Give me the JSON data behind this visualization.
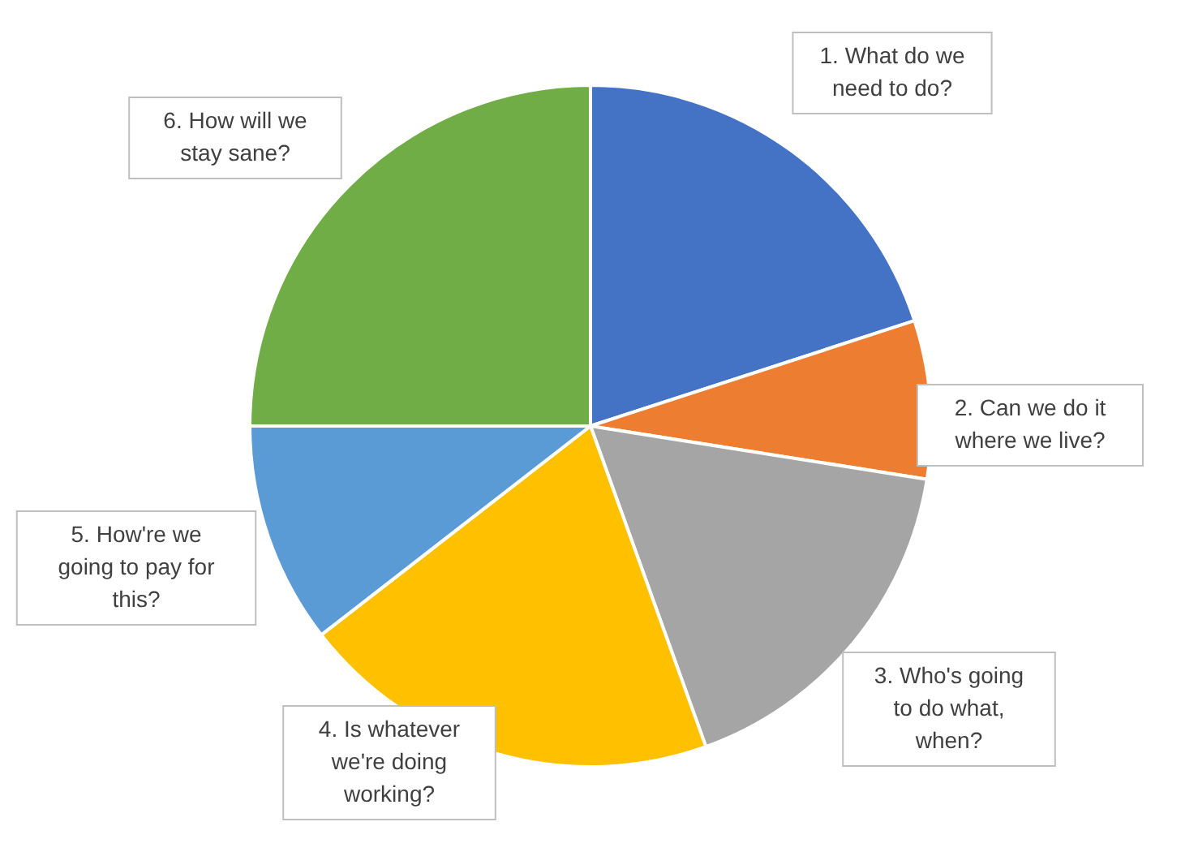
{
  "chart_data": {
    "type": "pie",
    "categories": [
      "1. What do we need to do?",
      "2. Can we do it where we live?",
      "3. Who's going to do what, when?",
      "4. Is whatever we're doing working?",
      "5. How're we going to pay for this?",
      "6. How will we stay sane?"
    ],
    "values": [
      20,
      7.5,
      17,
      20,
      10.5,
      25
    ],
    "colors": [
      "#4472c4",
      "#ed7d31",
      "#a5a5a5",
      "#ffc000",
      "#5b9bd5",
      "#70ad47"
    ]
  }
}
